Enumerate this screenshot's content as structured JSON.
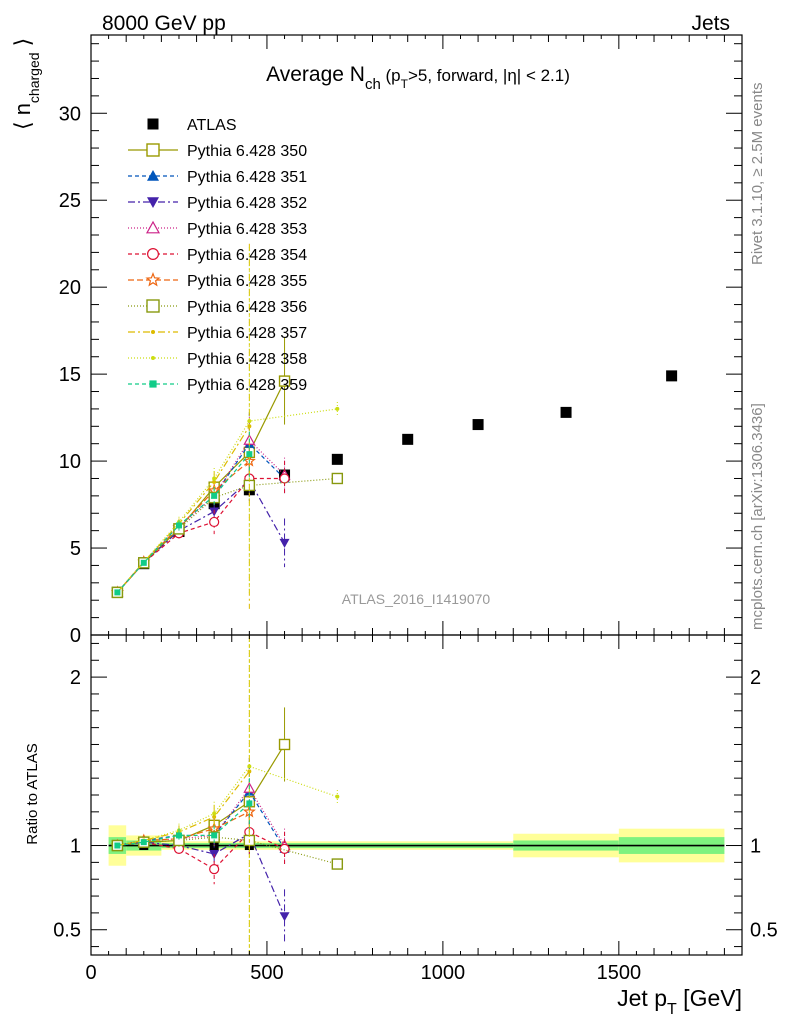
{
  "header": {
    "left": "8000 GeV pp",
    "right": "Jets"
  },
  "side_text": {
    "rivet": "Rivet 3.1.10, ≥ 2.5M events",
    "mcplots": "mcplots.cern.ch [arXiv:1306.3436]"
  },
  "watermark": "ATLAS_2016_I1419070",
  "colors": {
    "atlas": "#000000",
    "band_inner": "#7ff27f",
    "band_outer": "#ffff99"
  },
  "chart_data": [
    {
      "type": "scatter",
      "panel": "main",
      "title": {
        "main": "Average N",
        "sub": "ch",
        "rest": " (p",
        "sub2": "T",
        "rest2": ">5, forward, |η| < 2.1)"
      },
      "ylabel": {
        "main": "⟨ n",
        "sub": "charged",
        "close": " ⟩"
      },
      "xlim": [
        0,
        1850
      ],
      "ylim": [
        0,
        34.5
      ],
      "yticks": [
        "0",
        "5",
        "10",
        "15",
        "20",
        "25",
        "30"
      ],
      "ytick_values": [
        0,
        5,
        10,
        15,
        20,
        25,
        30
      ],
      "legend_position": "top-left",
      "series": [
        {
          "name": "ATLAS",
          "color": "#000000",
          "marker": "square-filled",
          "dash": "none",
          "x": [
            75,
            150,
            250,
            350,
            450,
            550,
            700,
            900,
            1100,
            1350,
            1650
          ],
          "y": [
            2.45,
            4.1,
            5.95,
            7.55,
            8.35,
            9.2,
            10.1,
            11.25,
            12.1,
            12.8,
            14.9
          ]
        },
        {
          "name": "Pythia 6.428 350",
          "color": "#999900",
          "marker": "square-open",
          "dash": "solid",
          "x": [
            75,
            150,
            250,
            350,
            450,
            550
          ],
          "y": [
            2.45,
            4.15,
            6.1,
            8.5,
            10.5,
            14.6
          ],
          "err": [
            0.1,
            0.1,
            0.3,
            0.5,
            1.0,
            2.5
          ]
        },
        {
          "name": "Pythia 6.428 351",
          "color": "#0055bb",
          "marker": "triangle-up-filled",
          "dash": "4,3",
          "x": [
            75,
            150,
            250,
            350,
            450,
            550
          ],
          "y": [
            2.45,
            4.2,
            6.3,
            8.0,
            11.0,
            9.0
          ],
          "err": [
            0.1,
            0.1,
            0.3,
            0.5,
            1.8,
            1.0
          ]
        },
        {
          "name": "Pythia 6.428 352",
          "color": "#4422aa",
          "marker": "triangle-down-filled",
          "dash": "7,3,2,3",
          "x": [
            75,
            150,
            250,
            350,
            450,
            550
          ],
          "y": [
            2.45,
            4.15,
            6.0,
            7.1,
            8.9,
            5.3
          ],
          "err": [
            0.1,
            0.1,
            0.3,
            0.6,
            1.2,
            1.4
          ]
        },
        {
          "name": "Pythia 6.428 353",
          "color": "#cc2288",
          "marker": "triangle-up-open",
          "dash": "1,2",
          "x": [
            75,
            150,
            250,
            350,
            450,
            550
          ],
          "y": [
            2.45,
            4.2,
            6.2,
            8.0,
            11.2,
            9.2
          ],
          "err": [
            0.1,
            0.1,
            0.3,
            0.5,
            1.5,
            1.0
          ]
        },
        {
          "name": "Pythia 6.428 354",
          "color": "#dd1133",
          "marker": "circle-open",
          "dash": "4,3",
          "x": [
            75,
            150,
            250,
            350,
            450,
            550
          ],
          "y": [
            2.45,
            4.15,
            5.85,
            6.5,
            9.0,
            9.0
          ],
          "err": [
            0.1,
            0.1,
            0.3,
            0.7,
            1.2,
            1.0
          ]
        },
        {
          "name": "Pythia 6.428 355",
          "color": "#ee6611",
          "marker": "star-open",
          "dash": "6,3",
          "x": [
            75,
            150,
            250,
            350,
            450
          ],
          "y": [
            2.45,
            4.2,
            6.2,
            8.3,
            10.0
          ],
          "err": [
            0.1,
            0.1,
            0.3,
            0.5,
            1.0
          ]
        },
        {
          "name": "Pythia 6.428 356",
          "color": "#88990f",
          "marker": "square-open",
          "dash": "1,2",
          "x": [
            75,
            150,
            250,
            350,
            450,
            700
          ],
          "y": [
            2.45,
            4.15,
            6.1,
            7.9,
            8.6,
            9.0
          ],
          "err": [
            0.1,
            0.1,
            0.3,
            0.5,
            0.8,
            0.2
          ]
        },
        {
          "name": "Pythia 6.428 357",
          "color": "#ddbb00",
          "marker": "dot",
          "dash": "7,3,2,3",
          "x": [
            75,
            150,
            250,
            350,
            450
          ],
          "y": [
            2.45,
            4.2,
            6.4,
            8.8,
            12.0
          ],
          "err": [
            0.1,
            0.1,
            0.3,
            0.6,
            10.5
          ]
        },
        {
          "name": "Pythia 6.428 358",
          "color": "#ccdd11",
          "marker": "dot",
          "dash": "1,2",
          "x": [
            75,
            150,
            250,
            350,
            450,
            700
          ],
          "y": [
            2.45,
            4.2,
            6.5,
            9.0,
            12.3,
            13.0
          ],
          "err": [
            0.1,
            0.1,
            0.3,
            0.6,
            10.0,
            0.4
          ]
        },
        {
          "name": "Pythia 6.428 359",
          "color": "#11cc88",
          "marker": "square-filled-small",
          "dash": "4,3",
          "x": [
            75,
            150,
            250,
            350,
            450
          ],
          "y": [
            2.45,
            4.15,
            6.3,
            8.0,
            10.4
          ],
          "err": [
            0.1,
            0.1,
            0.3,
            0.5,
            1.3
          ]
        }
      ]
    },
    {
      "type": "scatter",
      "panel": "ratio",
      "ylabel": "Ratio to ATLAS",
      "xlabel": {
        "main": "Jet p",
        "sub": "T",
        "rest": " [GeV]"
      },
      "xlim": [
        0,
        1850
      ],
      "ylim": [
        0.35,
        2.25
      ],
      "xticks": [
        "0",
        "500",
        "1000",
        "1500"
      ],
      "xtick_values": [
        0,
        500,
        1000,
        1500
      ],
      "yticks": [
        "0.5",
        "1",
        "2"
      ],
      "ytick_values": [
        0.5,
        1,
        2
      ],
      "bands": [
        {
          "x0": 50,
          "x1": 100,
          "inner": 0.05,
          "outer": 0.12
        },
        {
          "x0": 100,
          "x1": 200,
          "inner": 0.03,
          "outer": 0.06
        },
        {
          "x0": 200,
          "x1": 1200,
          "inner": 0.015,
          "outer": 0.025
        },
        {
          "x0": 1200,
          "x1": 1500,
          "inner": 0.03,
          "outer": 0.07
        },
        {
          "x0": 1500,
          "x1": 1800,
          "inner": 0.05,
          "outer": 0.1
        }
      ],
      "series": [
        {
          "name": "Pythia 6.428 350",
          "x": [
            75,
            150,
            250,
            350,
            450,
            550
          ],
          "y": [
            1.0,
            1.02,
            1.03,
            1.12,
            1.26,
            1.6
          ],
          "err": [
            0.01,
            0.01,
            0.04,
            0.06,
            0.12,
            0.22
          ]
        },
        {
          "name": "Pythia 6.428 351",
          "x": [
            75,
            150,
            250,
            350,
            450,
            550
          ],
          "y": [
            1.0,
            1.03,
            1.06,
            1.06,
            1.32,
            0.98
          ],
          "err": [
            0.01,
            0.01,
            0.04,
            0.06,
            0.2,
            0.1
          ]
        },
        {
          "name": "Pythia 6.428 352",
          "x": [
            75,
            150,
            250,
            350,
            450,
            550
          ],
          "y": [
            1.0,
            1.02,
            1.0,
            0.95,
            1.07,
            0.58
          ],
          "err": [
            0.01,
            0.01,
            0.04,
            0.08,
            0.13,
            0.16
          ]
        },
        {
          "name": "Pythia 6.428 353",
          "x": [
            75,
            150,
            250,
            350,
            450,
            550
          ],
          "y": [
            1.0,
            1.03,
            1.04,
            1.06,
            1.34,
            1.0
          ],
          "err": [
            0.01,
            0.01,
            0.04,
            0.06,
            0.18,
            0.1
          ]
        },
        {
          "name": "Pythia 6.428 354",
          "x": [
            75,
            150,
            250,
            350,
            450,
            550
          ],
          "y": [
            1.0,
            1.02,
            0.98,
            0.86,
            1.08,
            0.98
          ],
          "err": [
            0.01,
            0.01,
            0.04,
            0.09,
            0.14,
            0.1
          ]
        },
        {
          "name": "Pythia 6.428 355",
          "x": [
            75,
            150,
            250,
            350,
            450
          ],
          "y": [
            1.0,
            1.03,
            1.04,
            1.1,
            1.2
          ],
          "err": [
            0.01,
            0.01,
            0.04,
            0.06,
            0.12
          ]
        },
        {
          "name": "Pythia 6.428 356",
          "x": [
            75,
            150,
            250,
            350,
            450,
            700
          ],
          "y": [
            1.0,
            1.02,
            1.03,
            1.05,
            1.03,
            0.89
          ],
          "err": [
            0.01,
            0.01,
            0.04,
            0.06,
            0.1,
            0.02
          ]
        },
        {
          "name": "Pythia 6.428 357",
          "x": [
            75,
            150,
            250,
            350,
            450
          ],
          "y": [
            1.0,
            1.03,
            1.08,
            1.17,
            1.44
          ],
          "err": [
            0.01,
            0.01,
            0.04,
            0.07,
            1.3
          ]
        },
        {
          "name": "Pythia 6.428 358",
          "x": [
            75,
            150,
            250,
            350,
            450,
            700
          ],
          "y": [
            1.0,
            1.03,
            1.09,
            1.19,
            1.47,
            1.29
          ],
          "err": [
            0.01,
            0.01,
            0.04,
            0.07,
            1.2,
            0.04
          ]
        },
        {
          "name": "Pythia 6.428 359",
          "x": [
            75,
            150,
            250,
            350,
            450
          ],
          "y": [
            1.0,
            1.02,
            1.06,
            1.06,
            1.25
          ],
          "err": [
            0.01,
            0.01,
            0.04,
            0.06,
            0.15
          ]
        }
      ]
    }
  ]
}
